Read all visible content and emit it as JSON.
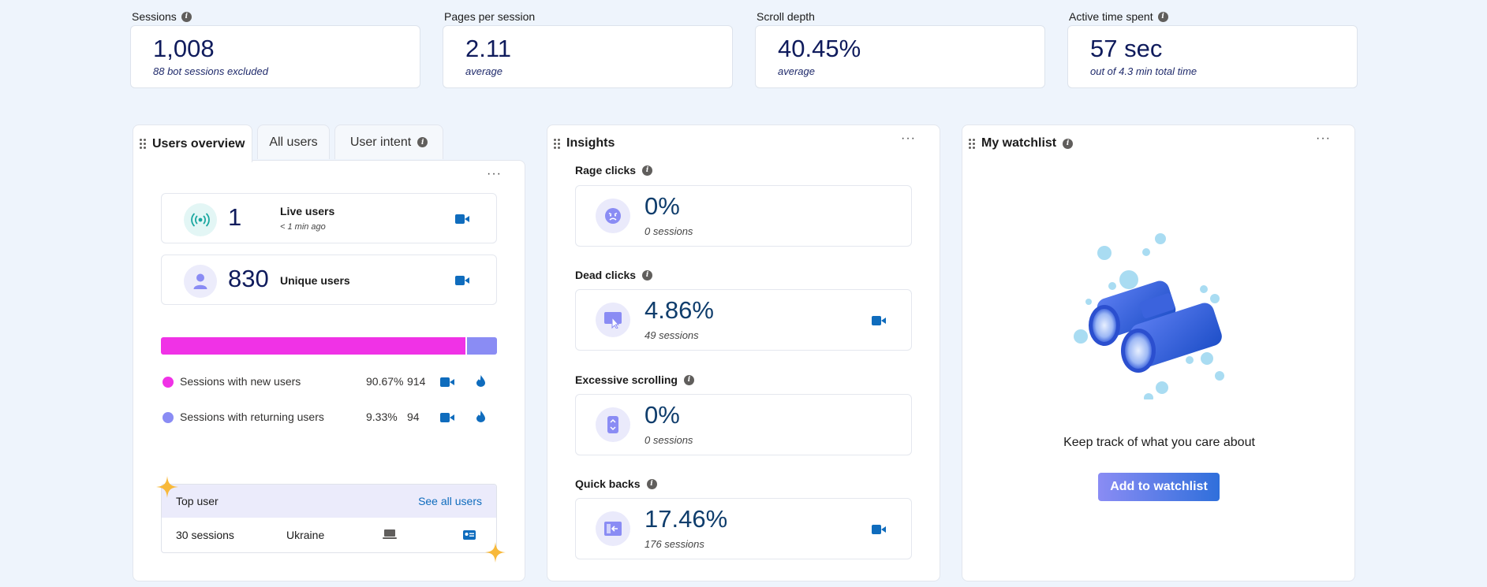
{
  "metrics": [
    {
      "label": "Sessions",
      "has_info": true,
      "value": "1,008",
      "sub": "88 bot sessions excluded"
    },
    {
      "label": "Pages per session",
      "has_info": false,
      "value": "2.11",
      "sub": "average"
    },
    {
      "label": "Scroll depth",
      "has_info": false,
      "value": "40.45%",
      "sub": "average"
    },
    {
      "label": "Active time spent",
      "has_info": true,
      "value": "57 sec",
      "sub": "out of 4.3 min total time"
    }
  ],
  "users_panel": {
    "tabs": [
      "Users overview",
      "All users",
      "User intent"
    ],
    "live": {
      "value": "1",
      "label": "Live users",
      "sub": "< 1 min ago"
    },
    "unique": {
      "value": "830",
      "label": "Unique users"
    },
    "bar": {
      "new_fraction": 0.9067,
      "new_color": "#f032e6",
      "returning_color": "#8a8cf4"
    },
    "legend": [
      {
        "name": "Sessions with new users",
        "pct": "90.67%",
        "count": "914",
        "color": "#f032e6"
      },
      {
        "name": "Sessions with returning users",
        "pct": "9.33%",
        "count": "94",
        "color": "#8a8cf4"
      }
    ],
    "top_user": {
      "title": "Top user",
      "link": "See all users",
      "sessions": "30 sessions",
      "country": "Ukraine"
    }
  },
  "insights": {
    "title": "Insights",
    "items": [
      {
        "label": "Rage clicks",
        "value": "0%",
        "sub": "0 sessions",
        "icon": "angry-face-icon",
        "has_record": false
      },
      {
        "label": "Dead clicks",
        "value": "4.86%",
        "sub": "49 sessions",
        "icon": "cursor-click-icon",
        "has_record": true
      },
      {
        "label": "Excessive scrolling",
        "value": "0%",
        "sub": "0 sessions",
        "icon": "scroll-icon",
        "has_record": false
      },
      {
        "label": "Quick backs",
        "value": "17.46%",
        "sub": "176 sessions",
        "icon": "back-arrow-icon",
        "has_record": true
      }
    ]
  },
  "watchlist": {
    "title": "My watchlist",
    "message": "Keep track of what you care about",
    "button": "Add to watchlist"
  }
}
